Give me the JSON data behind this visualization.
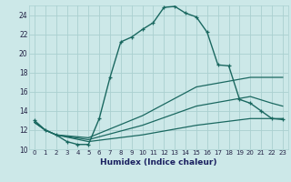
{
  "title": "",
  "xlabel": "Humidex (Indice chaleur)",
  "bg_color": "#cce8e8",
  "grid_color": "#aad0d0",
  "line_color": "#1a6860",
  "xlim": [
    -0.5,
    23.5
  ],
  "ylim": [
    10,
    25
  ],
  "xticks": [
    0,
    1,
    2,
    3,
    4,
    5,
    6,
    7,
    8,
    9,
    10,
    11,
    12,
    13,
    14,
    15,
    16,
    17,
    18,
    19,
    20,
    21,
    22,
    23
  ],
  "yticks": [
    10,
    12,
    14,
    16,
    18,
    20,
    22,
    24
  ],
  "line1_x": [
    0,
    1,
    2,
    3,
    4,
    5,
    6,
    7,
    8,
    9,
    10,
    11,
    12,
    13,
    14,
    15,
    16,
    17,
    18,
    19,
    20,
    21,
    22,
    23
  ],
  "line1_y": [
    13.0,
    12.0,
    11.5,
    10.8,
    10.5,
    10.5,
    13.2,
    17.5,
    21.2,
    21.7,
    22.5,
    23.2,
    24.8,
    24.9,
    24.2,
    23.8,
    22.2,
    18.8,
    18.7,
    15.2,
    14.8,
    14.0,
    13.2,
    13.1
  ],
  "line2_x": [
    0,
    1,
    2,
    5,
    10,
    15,
    20,
    22,
    23
  ],
  "line2_y": [
    12.8,
    12.0,
    11.5,
    11.2,
    13.5,
    16.5,
    17.5,
    17.5,
    17.5
  ],
  "line3_x": [
    0,
    1,
    2,
    5,
    10,
    15,
    20,
    22,
    23
  ],
  "line3_y": [
    12.8,
    12.0,
    11.5,
    11.0,
    12.5,
    14.5,
    15.5,
    14.8,
    14.5
  ],
  "line4_x": [
    0,
    1,
    2,
    5,
    10,
    15,
    20,
    22,
    23
  ],
  "line4_y": [
    12.8,
    12.0,
    11.5,
    10.8,
    11.5,
    12.5,
    13.2,
    13.2,
    13.2
  ]
}
